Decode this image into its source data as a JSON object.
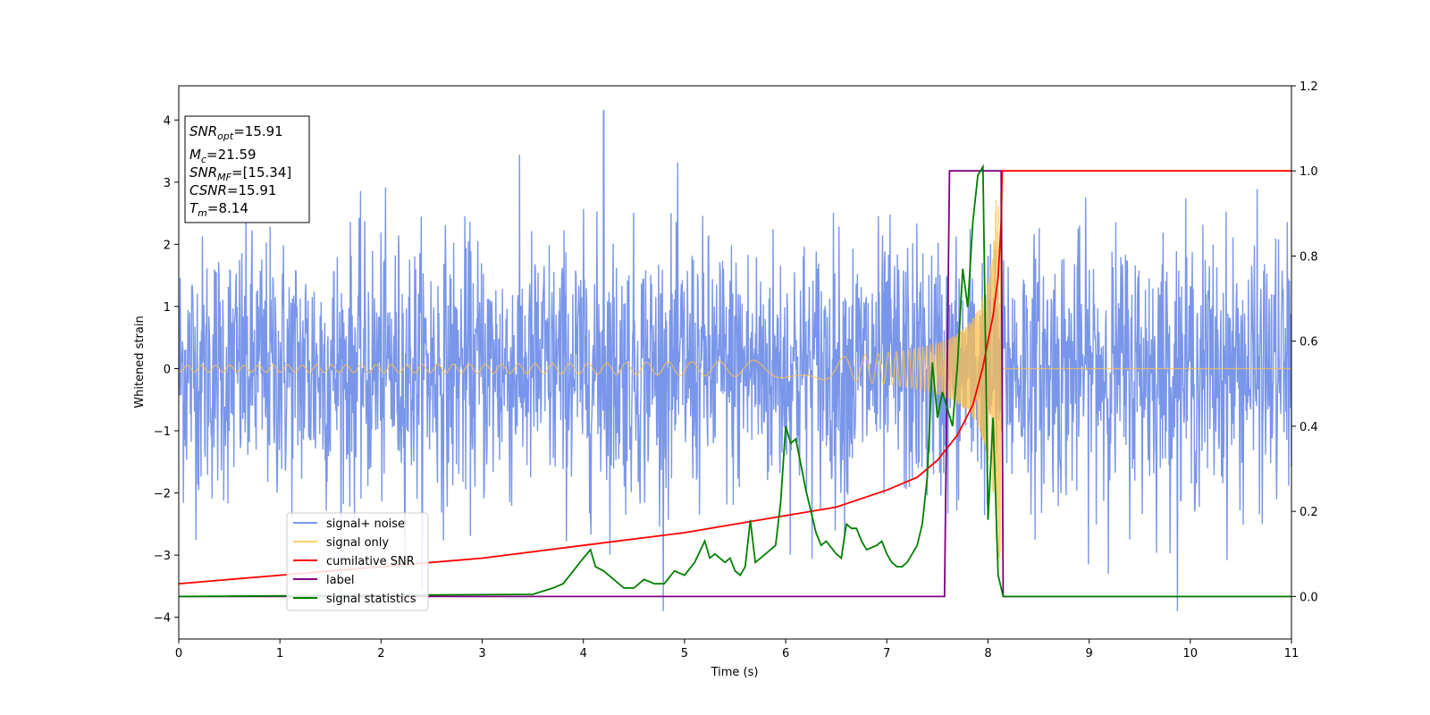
{
  "chart_data": {
    "type": "line",
    "title": "",
    "xlabel": "Time (s)",
    "ylabel": "Whitened strain",
    "xlim": [
      0,
      11
    ],
    "ylim_left": [
      -4.35,
      4.55
    ],
    "ylim_right": [
      -0.1,
      1.2
    ],
    "x_ticks": [
      0,
      1,
      2,
      3,
      4,
      5,
      6,
      7,
      8,
      9,
      10,
      11
    ],
    "y_left_ticks": [
      4,
      3,
      2,
      1,
      0,
      -1,
      -2,
      -3,
      -4
    ],
    "y_right_ticks": [
      "1.2",
      "1.0",
      "0.8",
      "0.6",
      "0.4",
      "0.2",
      "0.0"
    ],
    "y_right_tick_values": [
      1.2,
      1.0,
      0.8,
      0.6,
      0.4,
      0.2,
      0.0
    ],
    "grid": false,
    "legend_position": "lower-left",
    "info_box": {
      "snr_opt_main": "SNR",
      "snr_opt_sub": "opt",
      "snr_opt_value": "=15.91",
      "mc_main": "M",
      "mc_sub": "c",
      "mc_value": "=21.59",
      "snr_mf_main": "SNR",
      "snr_mf_sub": "MF",
      "snr_mf_value": "=[15.34]",
      "csnr_main": "CSNR",
      "csnr_value": "=15.91",
      "tm_main": "T",
      "tm_sub": "m",
      "tm_value": "=8.14"
    },
    "series": [
      {
        "name": "signal+ noise",
        "axis": "left",
        "color": "#4169e1",
        "description_values": "noise band approx ±2.6 with spikes to ±4; peak 4.15 at x=4.2"
      },
      {
        "name": "signal only",
        "axis": "left",
        "color": "#ffc04d",
        "chirp": {
          "start": 0,
          "end": 8.14,
          "amp_start": 0.03,
          "amp_end": 3.1,
          "after": 0
        }
      },
      {
        "name": "cumilative SNR",
        "axis": "right",
        "color": "#ff0000",
        "x": [
          0,
          1,
          2,
          3,
          4,
          5,
          6,
          6.5,
          7,
          7.3,
          7.5,
          7.7,
          7.85,
          7.95,
          8.05,
          8.1,
          8.13,
          8.14,
          11
        ],
        "y": [
          0.03,
          0.05,
          0.07,
          0.09,
          0.12,
          0.15,
          0.19,
          0.21,
          0.25,
          0.28,
          0.32,
          0.38,
          0.45,
          0.54,
          0.66,
          0.75,
          0.88,
          1.0,
          1.0
        ]
      },
      {
        "name": "label",
        "axis": "right",
        "color": "#800080",
        "x": [
          0,
          7.57,
          7.62,
          8.13,
          8.15,
          11
        ],
        "y": [
          0,
          0,
          1.0,
          1.0,
          0,
          0
        ]
      },
      {
        "name": "signal statistics",
        "axis": "right",
        "color": "#008000",
        "x": [
          0,
          3.5,
          3.7,
          3.8,
          3.9,
          4.0,
          4.07,
          4.12,
          4.2,
          4.3,
          4.4,
          4.5,
          4.6,
          4.7,
          4.8,
          4.9,
          5.0,
          5.1,
          5.2,
          5.25,
          5.3,
          5.4,
          5.45,
          5.5,
          5.55,
          5.6,
          5.65,
          5.7,
          5.8,
          5.9,
          5.95,
          6.0,
          6.05,
          6.1,
          6.2,
          6.3,
          6.35,
          6.4,
          6.5,
          6.55,
          6.6,
          6.65,
          6.7,
          6.75,
          6.8,
          6.9,
          6.95,
          7.0,
          7.05,
          7.1,
          7.15,
          7.2,
          7.25,
          7.3,
          7.35,
          7.4,
          7.45,
          7.5,
          7.55,
          7.6,
          7.65,
          7.7,
          7.75,
          7.8,
          7.85,
          7.9,
          7.95,
          8.0,
          8.05,
          8.1,
          8.15,
          8.2,
          11
        ],
        "y": [
          0.0,
          0.005,
          0.02,
          0.03,
          0.06,
          0.09,
          0.11,
          0.07,
          0.06,
          0.04,
          0.02,
          0.02,
          0.04,
          0.03,
          0.03,
          0.06,
          0.05,
          0.08,
          0.13,
          0.09,
          0.1,
          0.08,
          0.09,
          0.06,
          0.05,
          0.07,
          0.18,
          0.08,
          0.1,
          0.12,
          0.22,
          0.4,
          0.36,
          0.37,
          0.25,
          0.15,
          0.12,
          0.13,
          0.1,
          0.09,
          0.17,
          0.16,
          0.16,
          0.13,
          0.11,
          0.12,
          0.13,
          0.1,
          0.08,
          0.07,
          0.07,
          0.08,
          0.1,
          0.12,
          0.17,
          0.28,
          0.55,
          0.42,
          0.48,
          0.44,
          0.4,
          0.55,
          0.77,
          0.68,
          0.88,
          0.99,
          1.01,
          0.18,
          0.42,
          0.05,
          0.0,
          0.0,
          0.0
        ]
      }
    ]
  }
}
